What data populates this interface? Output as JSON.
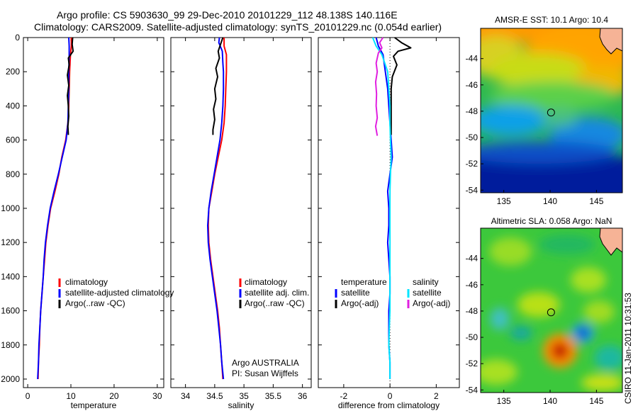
{
  "header": {
    "line1": "Argo profile: CS 5903630_99 29-Dec-2010 20101229_112 48.138S 140.116E",
    "line2": "Climatology: CARS2009. Satellite-adjusted climatology: synTS_20101229.nc (0.054d earlier)"
  },
  "stamp": "CSIRO 11-Jan-2011 10:31:53",
  "chart_data": [
    {
      "type": "line",
      "id": "temperature",
      "xlabel": "temperature",
      "ylabel": "",
      "xlim": [
        -1,
        31.5
      ],
      "ylim": [
        2050,
        0
      ],
      "xticks": [
        "0",
        "10",
        "20",
        "30"
      ],
      "xtick_values": [
        0,
        10,
        20,
        30
      ],
      "yticks": [
        "0",
        "200",
        "400",
        "600",
        "800",
        "1000",
        "1200",
        "1400",
        "1600",
        "1800",
        "2000"
      ],
      "ytick_values": [
        0,
        200,
        400,
        600,
        800,
        1000,
        1200,
        1400,
        1600,
        1800,
        2000
      ],
      "legend": [
        "climatology",
        "satellite-adjusted climatology",
        "Argo(..raw -QC)"
      ],
      "series": [
        {
          "name": "climatology",
          "color": "#ff0000",
          "points": [
            [
              10.1,
              0
            ],
            [
              10.1,
              50
            ],
            [
              9.9,
              100
            ],
            [
              9.7,
              200
            ],
            [
              9.6,
              300
            ],
            [
              9.5,
              400
            ],
            [
              9.3,
              500
            ],
            [
              8.8,
              600
            ],
            [
              7.9,
              700
            ],
            [
              7.2,
              800
            ],
            [
              6.3,
              900
            ],
            [
              5.3,
              1000
            ],
            [
              4.7,
              1100
            ],
            [
              4.2,
              1200
            ],
            [
              3.9,
              1300
            ],
            [
              3.6,
              1400
            ],
            [
              3.3,
              1500
            ],
            [
              3.0,
              1600
            ],
            [
              2.8,
              1700
            ],
            [
              2.7,
              1800
            ],
            [
              2.5,
              1900
            ],
            [
              2.4,
              2000
            ]
          ]
        },
        {
          "name": "satellite-adjusted climatology",
          "color": "#0000ff",
          "points": [
            [
              9.5,
              0
            ],
            [
              9.6,
              50
            ],
            [
              9.6,
              100
            ],
            [
              9.5,
              200
            ],
            [
              9.5,
              300
            ],
            [
              9.4,
              400
            ],
            [
              9.3,
              500
            ],
            [
              8.9,
              600
            ],
            [
              8.0,
              700
            ],
            [
              7.1,
              800
            ],
            [
              6.1,
              900
            ],
            [
              5.2,
              1000
            ],
            [
              4.6,
              1100
            ],
            [
              4.1,
              1200
            ],
            [
              3.8,
              1300
            ],
            [
              3.6,
              1400
            ],
            [
              3.3,
              1500
            ],
            [
              3.0,
              1600
            ],
            [
              2.8,
              1700
            ],
            [
              2.6,
              1800
            ],
            [
              2.5,
              1900
            ],
            [
              2.3,
              2000
            ]
          ]
        },
        {
          "name": "Argo(..raw -QC)",
          "color": "#000000",
          "points": [
            [
              10.4,
              0
            ],
            [
              10.3,
              40
            ],
            [
              10.5,
              80
            ],
            [
              9.4,
              120
            ],
            [
              9.6,
              160
            ],
            [
              9.2,
              220
            ],
            [
              9.5,
              280
            ],
            [
              9.2,
              340
            ],
            [
              9.4,
              400
            ],
            [
              9.5,
              460
            ],
            [
              9.3,
              520
            ],
            [
              9.4,
              570
            ]
          ]
        }
      ]
    },
    {
      "type": "line",
      "id": "salinity",
      "xlabel": "salinity",
      "ylabel": "",
      "xlim": [
        33.75,
        36.15
      ],
      "ylim": [
        2050,
        0
      ],
      "xticks": [
        "34",
        "34.5",
        "35",
        "35.5",
        "36"
      ],
      "xtick_values": [
        34,
        34.5,
        35,
        35.5,
        36
      ],
      "legend": [
        "climatology",
        "satellite adj. clim.",
        "Argo(..raw -QC)"
      ],
      "annotation": [
        "Argo AUSTRALIA",
        "PI: Susan Wijffels"
      ],
      "series": [
        {
          "name": "climatology",
          "color": "#ff0000",
          "points": [
            [
              34.66,
              0
            ],
            [
              34.66,
              50
            ],
            [
              34.7,
              100
            ],
            [
              34.7,
              200
            ],
            [
              34.69,
              300
            ],
            [
              34.68,
              400
            ],
            [
              34.66,
              500
            ],
            [
              34.62,
              600
            ],
            [
              34.56,
              700
            ],
            [
              34.5,
              800
            ],
            [
              34.45,
              900
            ],
            [
              34.4,
              1000
            ],
            [
              34.39,
              1100
            ],
            [
              34.4,
              1200
            ],
            [
              34.43,
              1300
            ],
            [
              34.47,
              1400
            ],
            [
              34.51,
              1500
            ],
            [
              34.55,
              1600
            ],
            [
              34.58,
              1700
            ],
            [
              34.6,
              1800
            ],
            [
              34.62,
              1900
            ],
            [
              34.64,
              2000
            ]
          ]
        },
        {
          "name": "satellite adj. clim.",
          "color": "#0000ff",
          "points": [
            [
              34.58,
              0
            ],
            [
              34.57,
              30
            ],
            [
              34.63,
              80
            ],
            [
              34.64,
              150
            ],
            [
              34.65,
              200
            ],
            [
              34.65,
              300
            ],
            [
              34.64,
              400
            ],
            [
              34.62,
              500
            ],
            [
              34.59,
              600
            ],
            [
              34.54,
              700
            ],
            [
              34.49,
              800
            ],
            [
              34.44,
              900
            ],
            [
              34.4,
              1000
            ],
            [
              34.38,
              1100
            ],
            [
              34.39,
              1200
            ],
            [
              34.42,
              1300
            ],
            [
              34.46,
              1400
            ],
            [
              34.5,
              1500
            ],
            [
              34.54,
              1600
            ],
            [
              34.57,
              1700
            ],
            [
              34.6,
              1800
            ],
            [
              34.62,
              1900
            ],
            [
              34.65,
              2000
            ]
          ]
        },
        {
          "name": "Argo(..raw -QC)",
          "color": "#000000",
          "points": [
            [
              34.64,
              0
            ],
            [
              34.6,
              40
            ],
            [
              34.56,
              80
            ],
            [
              34.58,
              120
            ],
            [
              34.52,
              180
            ],
            [
              34.55,
              230
            ],
            [
              34.5,
              300
            ],
            [
              34.52,
              360
            ],
            [
              34.48,
              420
            ],
            [
              34.5,
              480
            ],
            [
              34.47,
              540
            ],
            [
              34.47,
              570
            ]
          ]
        }
      ]
    },
    {
      "type": "line",
      "id": "difference",
      "xlabel": "difference from climatology",
      "ylabel": "",
      "xlim": [
        -3.1,
        3.0
      ],
      "ylim": [
        2050,
        0
      ],
      "xticks": [
        "-2",
        "0",
        "2"
      ],
      "xtick_values": [
        -2,
        0,
        2
      ],
      "legend_headers": [
        "temperature",
        "salinity"
      ],
      "legend": [
        "satellite",
        "Argo(-adj)",
        "satellite",
        "Argo(-adj)"
      ],
      "series": [
        {
          "name": "satellite",
          "color": "#0000ff",
          "points": [
            [
              -0.6,
              0
            ],
            [
              -0.5,
              50
            ],
            [
              -0.3,
              100
            ],
            [
              -0.2,
              200
            ],
            [
              -0.1,
              300
            ],
            [
              -0.05,
              400
            ],
            [
              0,
              500
            ],
            [
              0.05,
              600
            ],
            [
              0.1,
              700
            ],
            [
              0,
              800
            ],
            [
              -0.1,
              900
            ],
            [
              -0.05,
              1000
            ],
            [
              -0.05,
              1100
            ],
            [
              -0.1,
              1200
            ],
            [
              -0.05,
              1300
            ],
            [
              0,
              1400
            ],
            [
              0,
              1500
            ],
            [
              -0.05,
              1600
            ],
            [
              -0.05,
              1700
            ],
            [
              -0.05,
              1800
            ],
            [
              0,
              1900
            ],
            [
              0,
              2000
            ]
          ]
        },
        {
          "name": "Argo(-adj)",
          "color": "#000000",
          "points": [
            [
              0.2,
              0
            ],
            [
              0.5,
              30
            ],
            [
              0.9,
              60
            ],
            [
              0.35,
              80
            ],
            [
              0.15,
              110
            ],
            [
              0.3,
              160
            ],
            [
              0.1,
              230
            ],
            [
              0.05,
              300
            ],
            [
              0.05,
              400
            ],
            [
              0.05,
              500
            ],
            [
              0.05,
              570
            ]
          ]
        },
        {
          "name": "satellite",
          "color": "#00e5ff",
          "points": [
            [
              -0.75,
              0
            ],
            [
              -0.6,
              50
            ],
            [
              -0.35,
              100
            ],
            [
              -0.1,
              200
            ],
            [
              -0.05,
              300
            ],
            [
              0,
              400
            ],
            [
              0,
              500
            ],
            [
              0.02,
              600
            ],
            [
              0.05,
              700
            ],
            [
              0.02,
              800
            ],
            [
              0,
              900
            ],
            [
              0,
              1000
            ],
            [
              0,
              1100
            ],
            [
              0,
              1200
            ],
            [
              0,
              1300
            ],
            [
              0,
              1400
            ],
            [
              0,
              1500
            ],
            [
              0,
              1600
            ],
            [
              -0.03,
              1700
            ],
            [
              -0.05,
              1800
            ],
            [
              0,
              1900
            ],
            [
              0,
              2000
            ]
          ]
        },
        {
          "name": "Argo(-adj)",
          "color": "#e020e0",
          "points": [
            [
              -0.3,
              0
            ],
            [
              -0.45,
              30
            ],
            [
              -0.35,
              60
            ],
            [
              -0.5,
              90
            ],
            [
              -0.6,
              150
            ],
            [
              -0.55,
              200
            ],
            [
              -0.62,
              260
            ],
            [
              -0.58,
              330
            ],
            [
              -0.6,
              400
            ],
            [
              -0.55,
              470
            ],
            [
              -0.62,
              520
            ],
            [
              -0.55,
              575
            ]
          ]
        }
      ]
    },
    {
      "type": "heatmap",
      "id": "sst_map",
      "title": "AMSR-E SST: 10.1 Argo: 10.4",
      "xlim": [
        132.5,
        147.8
      ],
      "ylim": [
        -54.2,
        -41.7
      ],
      "xticks": [
        "135",
        "140",
        "145"
      ],
      "xtick_values": [
        135,
        140,
        145
      ],
      "yticks": [
        "-44",
        "-46",
        "-48",
        "-50",
        "-52",
        "-54"
      ],
      "ytick_values": [
        -44,
        -46,
        -48,
        -50,
        -52,
        -54
      ],
      "marker": [
        140.1,
        -48.1
      ]
    },
    {
      "type": "heatmap",
      "id": "sla_map",
      "title": "Altimetric SLA: 0.058 Argo: NaN",
      "xlim": [
        132.5,
        147.8
      ],
      "ylim": [
        -54.2,
        -41.7
      ],
      "xticks": [
        "135",
        "140",
        "145"
      ],
      "xtick_values": [
        135,
        140,
        145
      ],
      "yticks": [
        "-44",
        "-46",
        "-48",
        "-50",
        "-52",
        "-54"
      ],
      "ytick_values": [
        -44,
        -46,
        -48,
        -50,
        -52,
        -54
      ],
      "marker": [
        140.1,
        -48.1
      ]
    }
  ]
}
